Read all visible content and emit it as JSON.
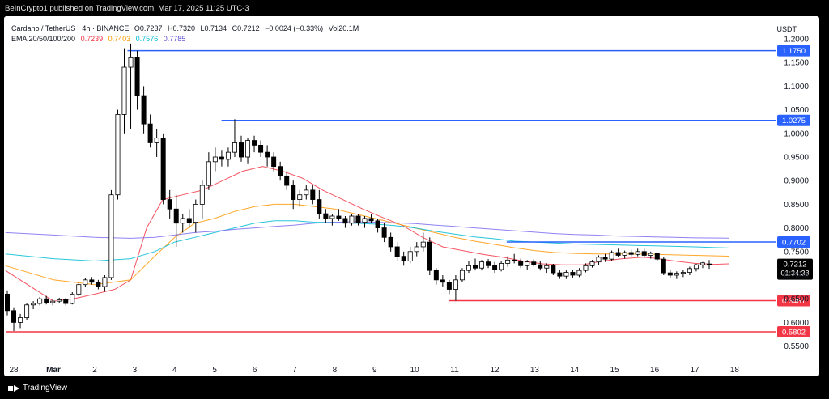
{
  "header": {
    "published": "BeInCrypto1 published on TradingView.com, Mar 17, 2025 11:25 UTC-3"
  },
  "legend": {
    "symbol": "Cardano / TetherUS · 4h · BINANCE",
    "open": "O0.7237",
    "high": "H0.7320",
    "low": "L0.7134",
    "close": "C0.7212",
    "change": "−0.0024 (−0.33%)",
    "volume": "Vol20.1M",
    "ema_label": "EMA 20/50/100/200",
    "ema20": "0.7239",
    "ema50": "0.7403",
    "ema100": "0.7576",
    "ema200": "0.7785"
  },
  "currency": "USDT",
  "footer": {
    "brand": "TradingView"
  },
  "colors": {
    "up": "#ffffff",
    "down": "#000000",
    "resistance": "#2962ff",
    "support": "#f23645",
    "ema20": "#f23645",
    "ema50": "#ff9800",
    "ema100": "#00bcd4",
    "ema200": "#7b6cf0"
  },
  "chart_data": {
    "type": "candlestick",
    "timeframe": "4h",
    "x_ticks": [
      "28",
      "Mar",
      "2",
      "3",
      "4",
      "5",
      "6",
      "7",
      "8",
      "9",
      "10",
      "11",
      "12",
      "13",
      "14",
      "15",
      "16",
      "17",
      "18"
    ],
    "y_ticks": [
      "1.2000",
      "1.1500",
      "1.1000",
      "1.0500",
      "1.0000",
      "0.9500",
      "0.9000",
      "0.8500",
      "0.8000",
      "0.7500",
      "0.7000",
      "0.6500",
      "0.6000",
      "0.5500"
    ],
    "ylim": [
      0.53,
      1.22
    ],
    "last_price": {
      "value": "0.7212",
      "countdown": "01:34:38"
    },
    "levels": [
      {
        "label": "1.1750",
        "value": 1.175,
        "kind": "resistance",
        "from_day": 1.82
      },
      {
        "label": "1.0275",
        "value": 1.0275,
        "kind": "resistance",
        "from_day": 4.17
      },
      {
        "label": "0.7702",
        "value": 0.7702,
        "kind": "resistance",
        "from_day": 11.3
      },
      {
        "label": "0.6461",
        "value": 0.6461,
        "kind": "support",
        "from_day": 9.85
      },
      {
        "label": "0.5802",
        "value": 0.5802,
        "kind": "support",
        "from_day": -1.18
      }
    ],
    "candles": [
      [
        0.66,
        0.668,
        0.615,
        0.625
      ],
      [
        0.625,
        0.632,
        0.582,
        0.6
      ],
      [
        0.6,
        0.618,
        0.588,
        0.61
      ],
      [
        0.61,
        0.64,
        0.605,
        0.637
      ],
      [
        0.637,
        0.645,
        0.628,
        0.64
      ],
      [
        0.64,
        0.654,
        0.636,
        0.65
      ],
      [
        0.65,
        0.656,
        0.638,
        0.642
      ],
      [
        0.642,
        0.65,
        0.636,
        0.645
      ],
      [
        0.645,
        0.652,
        0.64,
        0.648
      ],
      [
        0.648,
        0.652,
        0.636,
        0.64
      ],
      [
        0.64,
        0.664,
        0.638,
        0.66
      ],
      [
        0.66,
        0.685,
        0.655,
        0.68
      ],
      [
        0.68,
        0.694,
        0.675,
        0.69
      ],
      [
        0.69,
        0.696,
        0.68,
        0.685
      ],
      [
        0.685,
        0.69,
        0.67,
        0.676
      ],
      [
        0.676,
        0.7,
        0.665,
        0.695
      ],
      [
        0.695,
        0.88,
        0.69,
        0.87
      ],
      [
        0.87,
        1.05,
        0.86,
        1.04
      ],
      [
        1.04,
        1.18,
        1.0,
        1.14
      ],
      [
        1.14,
        1.19,
        1.01,
        1.16
      ],
      [
        1.16,
        1.175,
        1.05,
        1.08
      ],
      [
        1.08,
        1.1,
        1.0,
        1.02
      ],
      [
        1.02,
        1.04,
        0.97,
        0.98
      ],
      [
        0.98,
        1.01,
        0.95,
        0.99
      ],
      [
        0.99,
        1.0,
        0.85,
        0.86
      ],
      [
        0.86,
        0.88,
        0.82,
        0.84
      ],
      [
        0.84,
        0.87,
        0.76,
        0.81
      ],
      [
        0.81,
        0.83,
        0.79,
        0.82
      ],
      [
        0.82,
        0.84,
        0.8,
        0.812
      ],
      [
        0.812,
        0.86,
        0.79,
        0.85
      ],
      [
        0.85,
        0.9,
        0.82,
        0.89
      ],
      [
        0.89,
        0.96,
        0.88,
        0.94
      ],
      [
        0.94,
        0.97,
        0.92,
        0.95
      ],
      [
        0.95,
        0.965,
        0.93,
        0.945
      ],
      [
        0.945,
        0.97,
        0.93,
        0.96
      ],
      [
        0.96,
        1.03,
        0.95,
        0.98
      ],
      [
        0.98,
        0.995,
        0.94,
        0.95
      ],
      [
        0.95,
        0.99,
        0.935,
        0.985
      ],
      [
        0.985,
        0.995,
        0.96,
        0.975
      ],
      [
        0.975,
        0.985,
        0.95,
        0.96
      ],
      [
        0.96,
        0.975,
        0.93,
        0.95
      ],
      [
        0.95,
        0.96,
        0.92,
        0.93
      ],
      [
        0.93,
        0.94,
        0.9,
        0.91
      ],
      [
        0.91,
        0.92,
        0.88,
        0.89
      ],
      [
        0.89,
        0.9,
        0.84,
        0.86
      ],
      [
        0.86,
        0.88,
        0.845,
        0.87
      ],
      [
        0.87,
        0.89,
        0.86,
        0.88
      ],
      [
        0.88,
        0.89,
        0.85,
        0.86
      ],
      [
        0.86,
        0.88,
        0.82,
        0.83
      ],
      [
        0.83,
        0.84,
        0.81,
        0.82
      ],
      [
        0.82,
        0.83,
        0.805,
        0.825
      ],
      [
        0.825,
        0.84,
        0.815,
        0.82
      ],
      [
        0.82,
        0.825,
        0.8,
        0.81
      ],
      [
        0.81,
        0.83,
        0.805,
        0.825
      ],
      [
        0.825,
        0.83,
        0.805,
        0.812
      ],
      [
        0.812,
        0.825,
        0.8,
        0.82
      ],
      [
        0.82,
        0.83,
        0.81,
        0.815
      ],
      [
        0.815,
        0.82,
        0.79,
        0.8
      ],
      [
        0.8,
        0.81,
        0.77,
        0.78
      ],
      [
        0.78,
        0.79,
        0.75,
        0.76
      ],
      [
        0.76,
        0.77,
        0.73,
        0.74
      ],
      [
        0.74,
        0.75,
        0.72,
        0.73
      ],
      [
        0.73,
        0.76,
        0.725,
        0.75
      ],
      [
        0.75,
        0.77,
        0.74,
        0.76
      ],
      [
        0.76,
        0.79,
        0.75,
        0.77
      ],
      [
        0.77,
        0.78,
        0.7,
        0.71
      ],
      [
        0.71,
        0.715,
        0.68,
        0.69
      ],
      [
        0.69,
        0.7,
        0.675,
        0.685
      ],
      [
        0.685,
        0.69,
        0.66,
        0.67
      ],
      [
        0.67,
        0.7,
        0.646,
        0.69
      ],
      [
        0.69,
        0.715,
        0.685,
        0.71
      ],
      [
        0.71,
        0.73,
        0.705,
        0.72
      ],
      [
        0.72,
        0.735,
        0.71,
        0.715
      ],
      [
        0.715,
        0.732,
        0.71,
        0.728
      ],
      [
        0.728,
        0.734,
        0.715,
        0.72
      ],
      [
        0.72,
        0.728,
        0.705,
        0.712
      ],
      [
        0.712,
        0.73,
        0.708,
        0.725
      ],
      [
        0.725,
        0.74,
        0.718,
        0.732
      ],
      [
        0.732,
        0.745,
        0.725,
        0.73
      ],
      [
        0.73,
        0.735,
        0.715,
        0.72
      ],
      [
        0.72,
        0.732,
        0.712,
        0.728
      ],
      [
        0.728,
        0.734,
        0.718,
        0.722
      ],
      [
        0.722,
        0.73,
        0.71,
        0.715
      ],
      [
        0.715,
        0.725,
        0.705,
        0.72
      ],
      [
        0.72,
        0.724,
        0.7,
        0.705
      ],
      [
        0.705,
        0.712,
        0.692,
        0.698
      ],
      [
        0.698,
        0.71,
        0.692,
        0.706
      ],
      [
        0.706,
        0.712,
        0.695,
        0.7
      ],
      [
        0.7,
        0.715,
        0.696,
        0.71
      ],
      [
        0.71,
        0.725,
        0.706,
        0.72
      ],
      [
        0.72,
        0.732,
        0.716,
        0.728
      ],
      [
        0.728,
        0.742,
        0.722,
        0.738
      ],
      [
        0.738,
        0.745,
        0.728,
        0.734
      ],
      [
        0.734,
        0.752,
        0.73,
        0.748
      ],
      [
        0.748,
        0.756,
        0.738,
        0.742
      ],
      [
        0.742,
        0.752,
        0.735,
        0.748
      ],
      [
        0.748,
        0.754,
        0.74,
        0.744
      ],
      [
        0.744,
        0.756,
        0.74,
        0.75
      ],
      [
        0.75,
        0.756,
        0.738,
        0.742
      ],
      [
        0.742,
        0.75,
        0.735,
        0.746
      ],
      [
        0.746,
        0.748,
        0.73,
        0.734
      ],
      [
        0.734,
        0.738,
        0.7,
        0.705
      ],
      [
        0.705,
        0.712,
        0.694,
        0.7
      ],
      [
        0.7,
        0.708,
        0.692,
        0.704
      ],
      [
        0.704,
        0.712,
        0.696,
        0.706
      ],
      [
        0.706,
        0.718,
        0.7,
        0.714
      ],
      [
        0.714,
        0.724,
        0.708,
        0.722
      ],
      [
        0.722,
        0.728,
        0.715,
        0.726
      ],
      [
        0.7237,
        0.732,
        0.7134,
        0.7212
      ]
    ],
    "ema_series": [
      {
        "label": "0.7239",
        "color": "#f23645",
        "points": [
          [
            -1.2,
            0.71
          ],
          [
            0.0,
            0.645
          ],
          [
            0.5,
            0.65
          ],
          [
            1.0,
            0.66
          ],
          [
            1.5,
            0.67
          ],
          [
            1.9,
            0.69
          ],
          [
            2.3,
            0.8
          ],
          [
            2.7,
            0.86
          ],
          [
            3.2,
            0.87
          ],
          [
            3.7,
            0.88
          ],
          [
            4.2,
            0.9
          ],
          [
            4.7,
            0.92
          ],
          [
            5.2,
            0.93
          ],
          [
            5.7,
            0.92
          ],
          [
            6.2,
            0.905
          ],
          [
            6.7,
            0.88
          ],
          [
            7.2,
            0.86
          ],
          [
            7.7,
            0.84
          ],
          [
            8.2,
            0.822
          ],
          [
            8.7,
            0.805
          ],
          [
            9.2,
            0.78
          ],
          [
            9.7,
            0.76
          ],
          [
            10.2,
            0.752
          ],
          [
            10.7,
            0.744
          ],
          [
            11.2,
            0.738
          ],
          [
            11.7,
            0.73
          ],
          [
            12.2,
            0.724
          ],
          [
            12.7,
            0.722
          ],
          [
            13.2,
            0.722
          ],
          [
            13.7,
            0.73
          ],
          [
            14.2,
            0.735
          ],
          [
            14.7,
            0.738
          ],
          [
            15.0,
            0.736
          ],
          [
            15.5,
            0.73
          ],
          [
            16.0,
            0.725
          ],
          [
            16.5,
            0.723
          ],
          [
            16.85,
            0.7239
          ]
        ]
      },
      {
        "label": "0.7403",
        "color": "#ff9800",
        "points": [
          [
            -1.2,
            0.72
          ],
          [
            0.0,
            0.69
          ],
          [
            1.0,
            0.68
          ],
          [
            1.9,
            0.69
          ],
          [
            2.5,
            0.74
          ],
          [
            3.0,
            0.78
          ],
          [
            3.5,
            0.81
          ],
          [
            4.0,
            0.82
          ],
          [
            4.5,
            0.835
          ],
          [
            5.0,
            0.845
          ],
          [
            5.5,
            0.85
          ],
          [
            6.0,
            0.85
          ],
          [
            6.5,
            0.845
          ],
          [
            7.0,
            0.84
          ],
          [
            7.5,
            0.83
          ],
          [
            8.0,
            0.82
          ],
          [
            8.5,
            0.81
          ],
          [
            9.0,
            0.8
          ],
          [
            9.5,
            0.79
          ],
          [
            10.0,
            0.78
          ],
          [
            10.5,
            0.772
          ],
          [
            11.0,
            0.765
          ],
          [
            11.5,
            0.758
          ],
          [
            12.0,
            0.752
          ],
          [
            12.5,
            0.748
          ],
          [
            13.0,
            0.746
          ],
          [
            13.5,
            0.745
          ],
          [
            14.0,
            0.745
          ],
          [
            14.5,
            0.745
          ],
          [
            15.0,
            0.744
          ],
          [
            15.5,
            0.743
          ],
          [
            16.0,
            0.742
          ],
          [
            16.85,
            0.7403
          ]
        ]
      },
      {
        "label": "0.7576",
        "color": "#00bcd4",
        "points": [
          [
            -1.2,
            0.745
          ],
          [
            0.0,
            0.735
          ],
          [
            1.0,
            0.73
          ],
          [
            1.9,
            0.735
          ],
          [
            2.5,
            0.75
          ],
          [
            3.0,
            0.77
          ],
          [
            3.5,
            0.78
          ],
          [
            4.0,
            0.79
          ],
          [
            4.5,
            0.8
          ],
          [
            5.0,
            0.81
          ],
          [
            5.5,
            0.815
          ],
          [
            6.0,
            0.815
          ],
          [
            6.5,
            0.812
          ],
          [
            7.0,
            0.812
          ],
          [
            7.5,
            0.81
          ],
          [
            8.0,
            0.808
          ],
          [
            8.5,
            0.805
          ],
          [
            9.0,
            0.8
          ],
          [
            9.5,
            0.793
          ],
          [
            10.0,
            0.787
          ],
          [
            10.5,
            0.781
          ],
          [
            11.0,
            0.777
          ],
          [
            11.5,
            0.772
          ],
          [
            12.0,
            0.77
          ],
          [
            12.5,
            0.768
          ],
          [
            13.0,
            0.766
          ],
          [
            13.5,
            0.765
          ],
          [
            14.0,
            0.764
          ],
          [
            14.5,
            0.763
          ],
          [
            15.0,
            0.762
          ],
          [
            15.5,
            0.761
          ],
          [
            16.0,
            0.76
          ],
          [
            16.85,
            0.7576
          ]
        ]
      },
      {
        "label": "0.7785",
        "color": "#7b6cf0",
        "points": [
          [
            -1.2,
            0.79
          ],
          [
            0.0,
            0.785
          ],
          [
            1.0,
            0.78
          ],
          [
            1.9,
            0.778
          ],
          [
            2.5,
            0.78
          ],
          [
            3.0,
            0.785
          ],
          [
            3.5,
            0.79
          ],
          [
            4.0,
            0.793
          ],
          [
            4.5,
            0.797
          ],
          [
            5.0,
            0.8
          ],
          [
            5.5,
            0.803
          ],
          [
            6.0,
            0.806
          ],
          [
            6.5,
            0.81
          ],
          [
            7.0,
            0.812
          ],
          [
            7.5,
            0.813
          ],
          [
            8.0,
            0.812
          ],
          [
            8.5,
            0.811
          ],
          [
            9.0,
            0.809
          ],
          [
            9.5,
            0.806
          ],
          [
            10.0,
            0.803
          ],
          [
            10.5,
            0.8
          ],
          [
            11.0,
            0.797
          ],
          [
            11.5,
            0.794
          ],
          [
            12.0,
            0.791
          ],
          [
            12.5,
            0.788
          ],
          [
            13.0,
            0.786
          ],
          [
            13.5,
            0.785
          ],
          [
            14.0,
            0.783
          ],
          [
            14.5,
            0.782
          ],
          [
            15.0,
            0.781
          ],
          [
            15.5,
            0.78
          ],
          [
            16.0,
            0.779
          ],
          [
            16.85,
            0.7785
          ]
        ]
      }
    ]
  }
}
